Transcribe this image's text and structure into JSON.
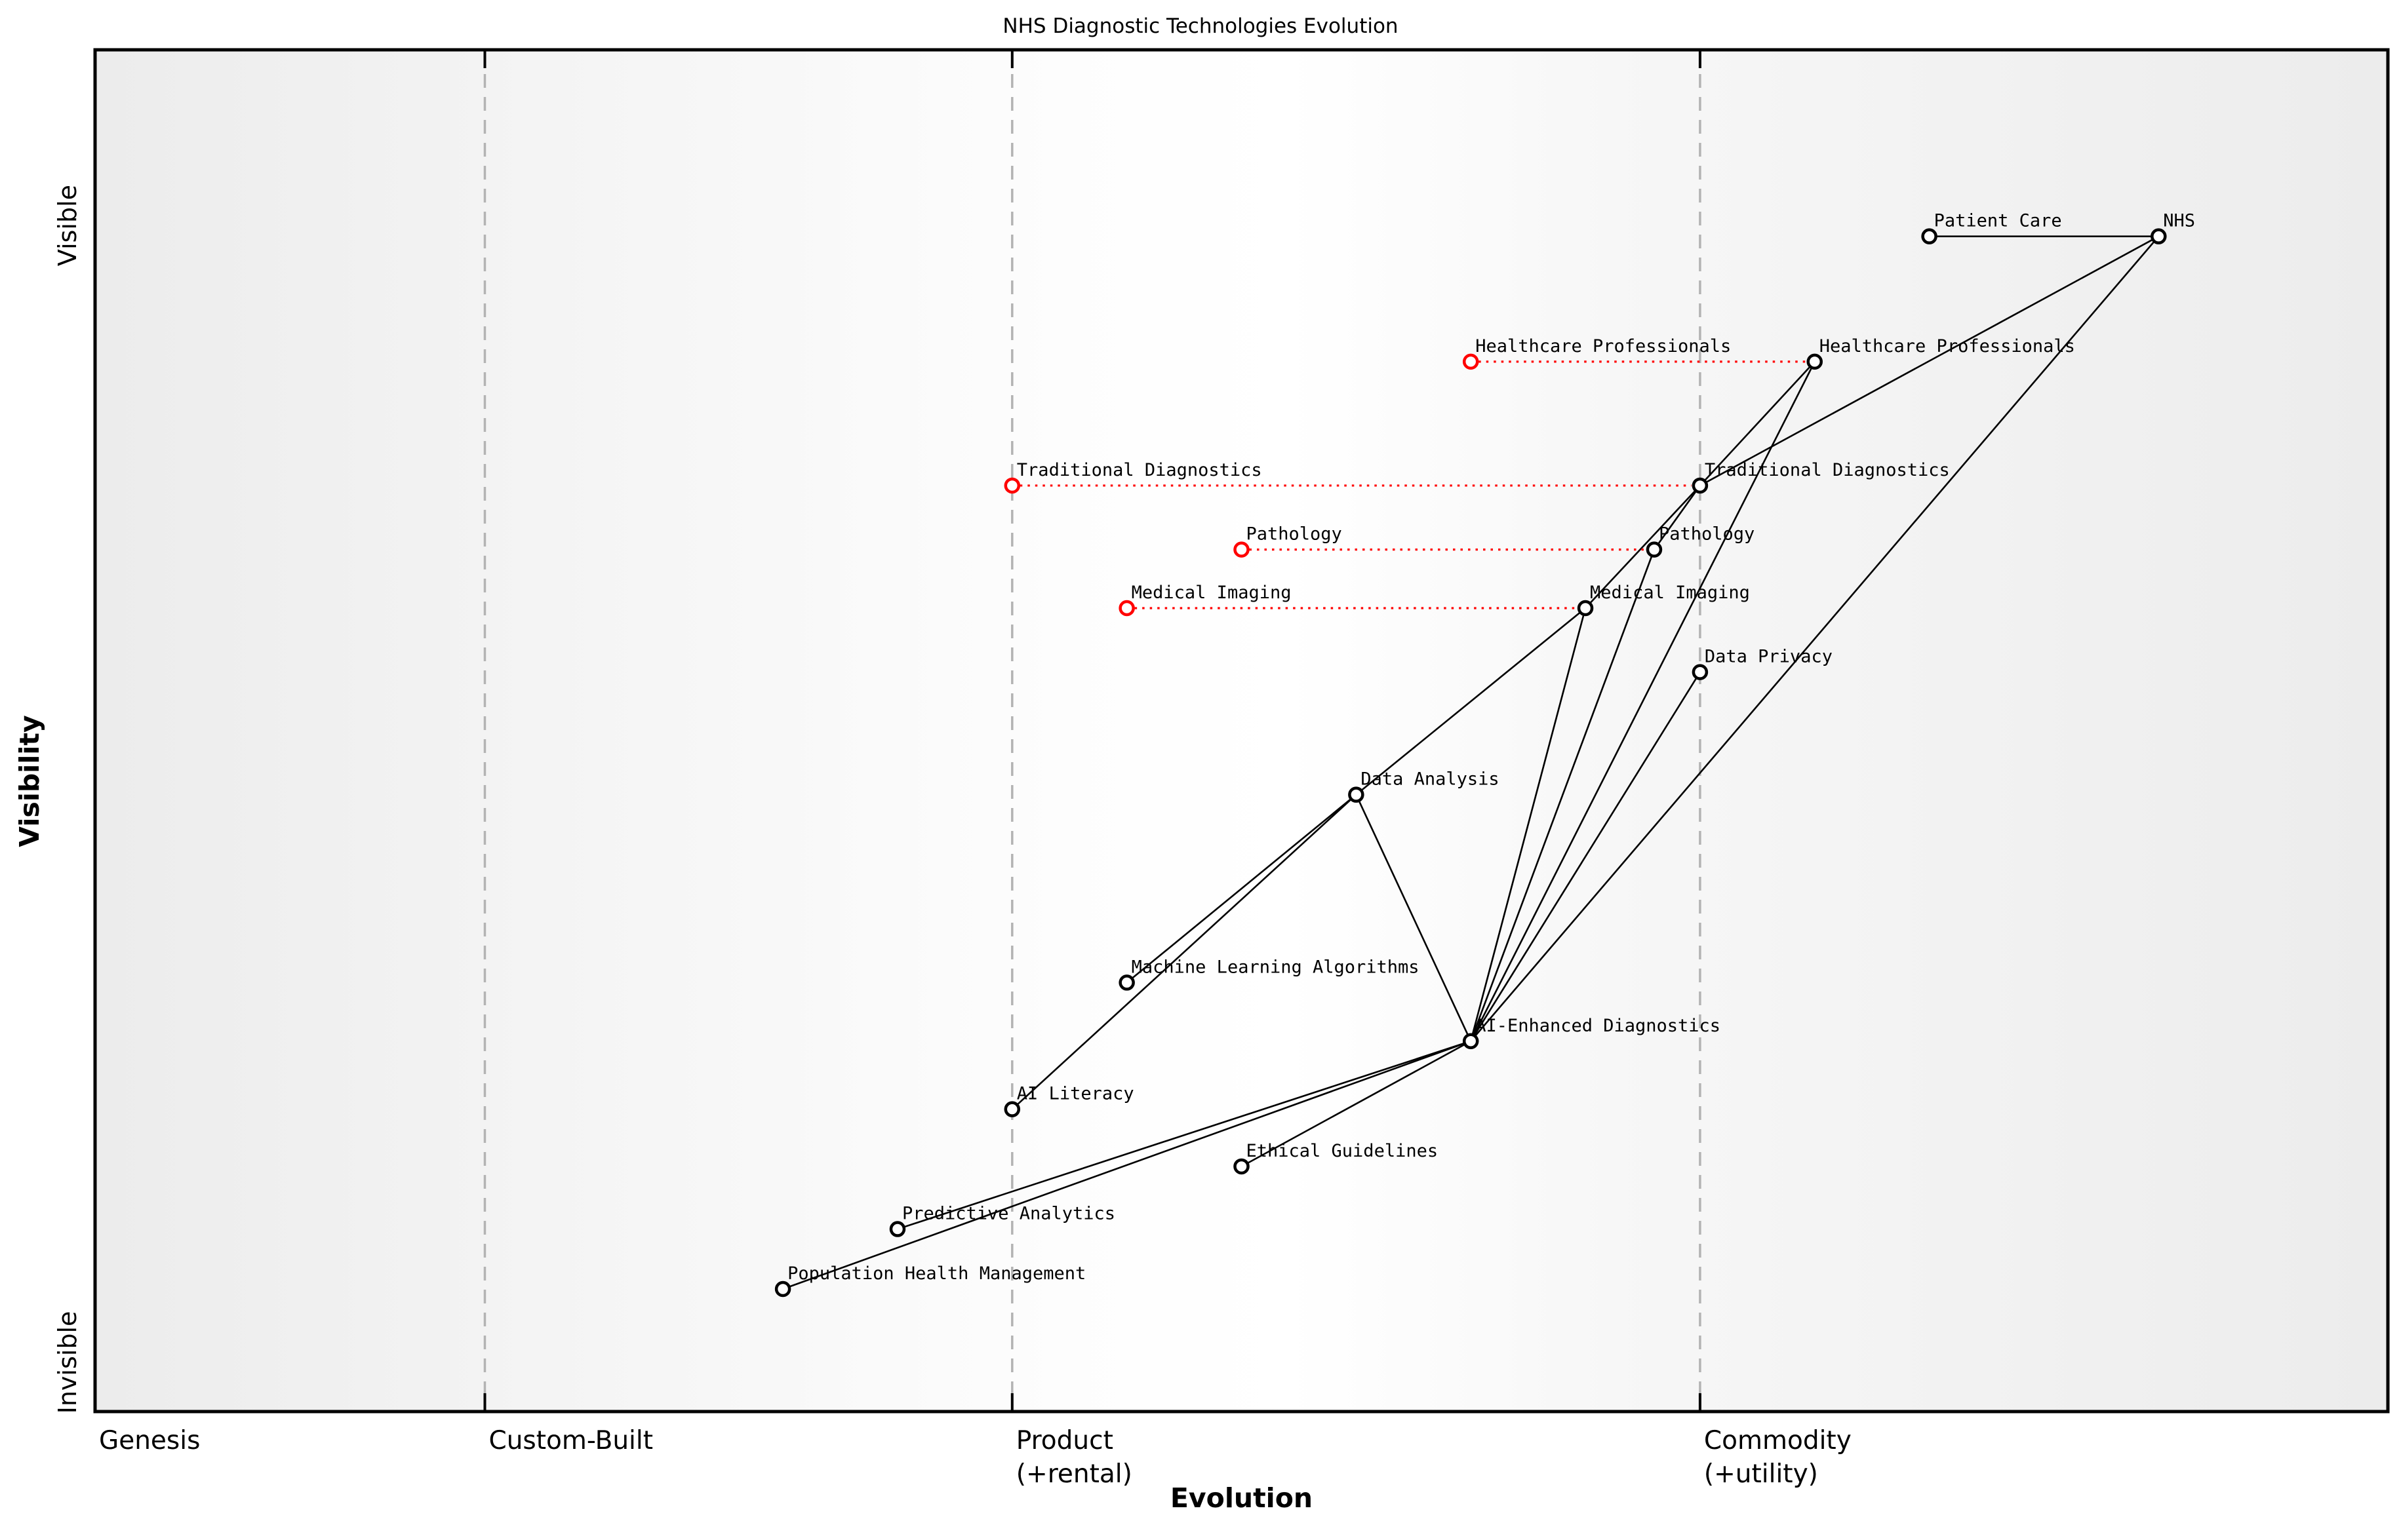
{
  "title": "NHS Diagnostic Technologies Evolution",
  "axes": {
    "x_label": "Evolution",
    "y_label": "Visibility",
    "y_top_label": "Visible",
    "y_bottom_label": "Invisible"
  },
  "colors": {
    "edge": "#000000",
    "node_stroke": "#000000",
    "node_fill": "#ffffff",
    "evolve_red": "#ff0000",
    "boundary_gray": "#b3b3b3",
    "border": "#000000"
  },
  "chart_data": {
    "type": "scatter",
    "title": "NHS Diagnostic Technologies Evolution",
    "xlabel": "Evolution",
    "ylabel": "Visibility",
    "x_range": [
      0,
      1
    ],
    "y_range": [
      0,
      1
    ],
    "grid": false,
    "stages": [
      {
        "label": "Genesis",
        "sub": "",
        "ex": 0.0
      },
      {
        "label": "Custom-Built",
        "sub": "",
        "ex": 0.17
      },
      {
        "label": "Product",
        "sub": "(+rental)",
        "ex": 0.4
      },
      {
        "label": "Commodity",
        "sub": "(+utility)",
        "ex": 0.7
      }
    ],
    "boundaries": [
      0.17,
      0.4,
      0.7
    ],
    "nodes": [
      {
        "id": "patient_care",
        "label": "Patient Care",
        "evolution": 0.8,
        "visibility": 0.863
      },
      {
        "id": "nhs",
        "label": "NHS",
        "evolution": 0.9,
        "visibility": 0.863
      },
      {
        "id": "healthcare_professionals",
        "label": "Healthcare Professionals",
        "evolution": 0.75,
        "visibility": 0.771
      },
      {
        "id": "traditional_diagnostics",
        "label": "Traditional Diagnostics",
        "evolution": 0.7,
        "visibility": 0.68
      },
      {
        "id": "pathology",
        "label": "Pathology",
        "evolution": 0.68,
        "visibility": 0.633
      },
      {
        "id": "medical_imaging",
        "label": "Medical Imaging",
        "evolution": 0.65,
        "visibility": 0.59
      },
      {
        "id": "data_privacy",
        "label": "Data Privacy",
        "evolution": 0.7,
        "visibility": 0.543
      },
      {
        "id": "data_analysis",
        "label": "Data Analysis",
        "evolution": 0.55,
        "visibility": 0.453
      },
      {
        "id": "machine_learning_algorithms",
        "label": "Machine Learning Algorithms",
        "evolution": 0.45,
        "visibility": 0.315
      },
      {
        "id": "ai_enhanced_diagnostics",
        "label": "AI-Enhanced Diagnostics",
        "evolution": 0.6,
        "visibility": 0.272
      },
      {
        "id": "ai_literacy",
        "label": "AI Literacy",
        "evolution": 0.4,
        "visibility": 0.222
      },
      {
        "id": "ethical_guidelines",
        "label": "Ethical Guidelines",
        "evolution": 0.5,
        "visibility": 0.18
      },
      {
        "id": "predictive_analytics",
        "label": "Predictive Analytics",
        "evolution": 0.35,
        "visibility": 0.134
      },
      {
        "id": "population_health_management",
        "label": "Population Health Management",
        "evolution": 0.3,
        "visibility": 0.09
      }
    ],
    "edges": [
      [
        "patient_care",
        "nhs"
      ],
      [
        "nhs",
        "traditional_diagnostics"
      ],
      [
        "nhs",
        "ai_enhanced_diagnostics"
      ],
      [
        "healthcare_professionals",
        "traditional_diagnostics"
      ],
      [
        "healthcare_professionals",
        "ai_enhanced_diagnostics"
      ],
      [
        "traditional_diagnostics",
        "pathology"
      ],
      [
        "traditional_diagnostics",
        "medical_imaging"
      ],
      [
        "pathology",
        "ai_enhanced_diagnostics"
      ],
      [
        "medical_imaging",
        "ai_enhanced_diagnostics"
      ],
      [
        "data_privacy",
        "ai_enhanced_diagnostics"
      ],
      [
        "data_analysis",
        "ai_enhanced_diagnostics"
      ],
      [
        "data_analysis",
        "machine_learning_algorithms"
      ],
      [
        "data_analysis",
        "medical_imaging"
      ],
      [
        "data_analysis",
        "ai_literacy"
      ],
      [
        "ai_enhanced_diagnostics",
        "ethical_guidelines"
      ],
      [
        "ai_enhanced_diagnostics",
        "predictive_analytics"
      ],
      [
        "ai_enhanced_diagnostics",
        "population_health_management"
      ]
    ],
    "evolutions": [
      {
        "node": "healthcare_professionals",
        "label": "Healthcare Professionals",
        "from_evolution": 0.6
      },
      {
        "node": "traditional_diagnostics",
        "label": "Traditional Diagnostics",
        "from_evolution": 0.4
      },
      {
        "node": "pathology",
        "label": "Pathology",
        "from_evolution": 0.5
      },
      {
        "node": "medical_imaging",
        "label": "Medical Imaging",
        "from_evolution": 0.45
      }
    ]
  }
}
